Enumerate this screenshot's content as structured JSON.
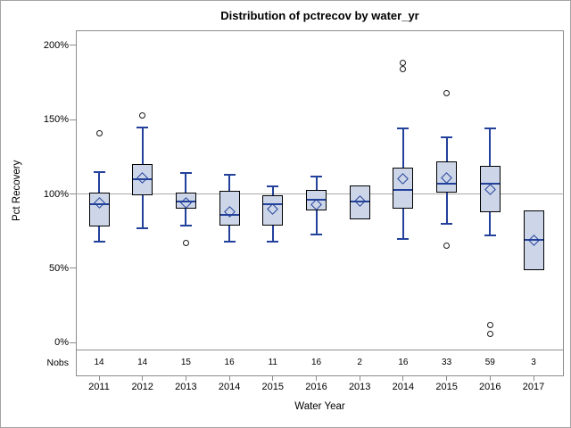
{
  "window": {
    "title": "Distribution of pctrecov by water_yr"
  },
  "chart_data": {
    "type": "box",
    "title": "Distribution of pctrecov by water_yr",
    "xlabel": "Water Year",
    "ylabel": "Pct Recovery",
    "nobs_row_label": "Nobs",
    "y_ticks": [
      {
        "label": "0%",
        "value": 0
      },
      {
        "label": "50%",
        "value": 50
      },
      {
        "label": "100%",
        "value": 100
      },
      {
        "label": "150%",
        "value": 150
      },
      {
        "label": "200%",
        "value": 200
      }
    ],
    "ylim": [
      -12,
      210
    ],
    "reference_line_value": 100,
    "grid": "off",
    "categories": [
      "2011",
      "2012",
      "2013",
      "2014",
      "2015",
      "2016",
      "2013",
      "2014",
      "2015",
      "2016",
      "2017"
    ],
    "nobs": [
      14,
      14,
      15,
      16,
      11,
      16,
      2,
      16,
      33,
      59,
      3
    ],
    "boxes": [
      {
        "category": "2011",
        "nobs": 14,
        "whisker_low": 68,
        "q1": 78,
        "median": 93,
        "mean": 94,
        "q3": 101,
        "whisker_high": 115,
        "outliers": [
          141
        ]
      },
      {
        "category": "2012",
        "nobs": 14,
        "whisker_low": 77,
        "q1": 99,
        "median": 110,
        "mean": 111,
        "q3": 120,
        "whisker_high": 145,
        "outliers": [
          153
        ]
      },
      {
        "category": "2013",
        "nobs": 15,
        "whisker_low": 79,
        "q1": 90,
        "median": 95,
        "mean": 94,
        "q3": 101,
        "whisker_high": 114,
        "outliers": [
          67
        ]
      },
      {
        "category": "2014",
        "nobs": 16,
        "whisker_low": 68,
        "q1": 79,
        "median": 86,
        "mean": 88,
        "q3": 102,
        "whisker_high": 113,
        "outliers": []
      },
      {
        "category": "2015",
        "nobs": 11,
        "whisker_low": 68,
        "q1": 79,
        "median": 93,
        "mean": 90,
        "q3": 99,
        "whisker_high": 105,
        "outliers": []
      },
      {
        "category": "2016",
        "nobs": 16,
        "whisker_low": 73,
        "q1": 89,
        "median": 96,
        "mean": 93,
        "q3": 103,
        "whisker_high": 112,
        "outliers": []
      },
      {
        "category": "2013",
        "nobs": 2,
        "whisker_low": null,
        "q1": 83,
        "median": 95,
        "mean": 95,
        "q3": 106,
        "whisker_high": null,
        "outliers": []
      },
      {
        "category": "2014",
        "nobs": 16,
        "whisker_low": 70,
        "q1": 90,
        "median": 103,
        "mean": 110,
        "q3": 118,
        "whisker_high": 144,
        "outliers": [
          188,
          184
        ]
      },
      {
        "category": "2015",
        "nobs": 33,
        "whisker_low": 80,
        "q1": 101,
        "median": 107,
        "mean": 111,
        "q3": 122,
        "whisker_high": 138,
        "outliers": [
          168,
          65
        ]
      },
      {
        "category": "2016",
        "nobs": 59,
        "whisker_low": 72,
        "q1": 88,
        "median": 107,
        "mean": 103,
        "q3": 119,
        "whisker_high": 144,
        "outliers": [
          12,
          6
        ]
      },
      {
        "category": "2017",
        "nobs": 3,
        "whisker_low": null,
        "q1": 49,
        "median": 69,
        "mean": 69,
        "q3": 89,
        "whisker_high": null,
        "outliers": []
      }
    ],
    "colors": {
      "box_fill": "#ccd6e8",
      "box_border": "#000000",
      "box_line_blue": "#23419a",
      "outlier_stroke": "#1a1a1a",
      "frame_gray": "#8c8c8c",
      "reference_line_gray": "#a8a8a8",
      "text": "#000000"
    }
  }
}
